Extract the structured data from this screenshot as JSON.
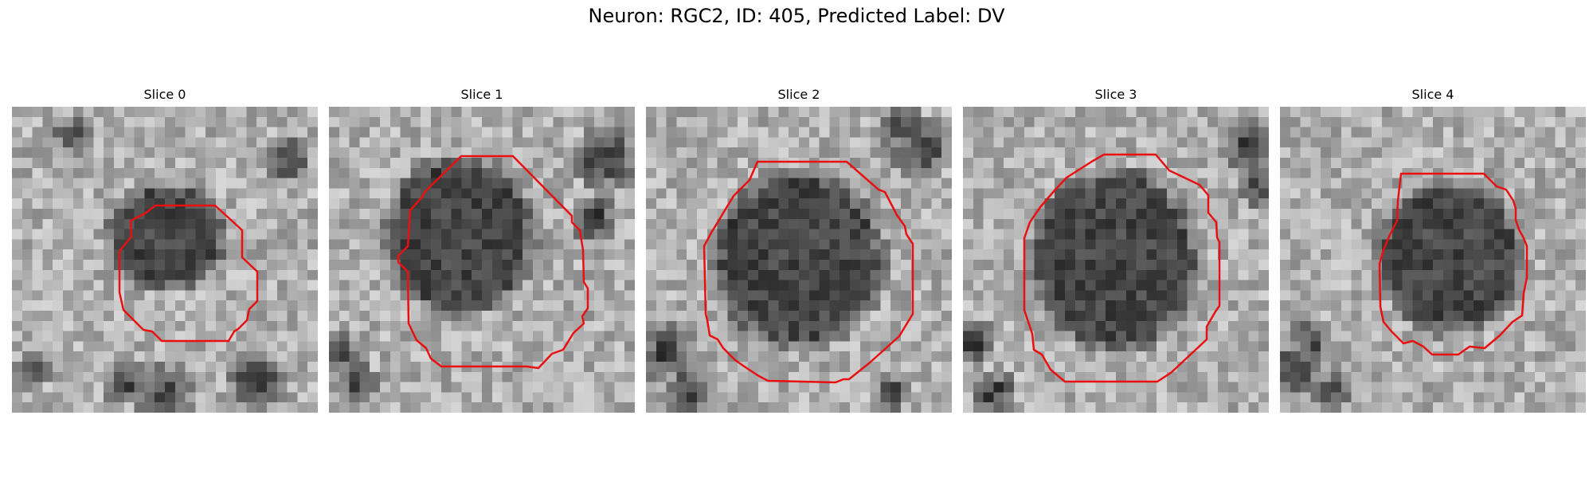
{
  "figure": {
    "title": "Neuron: RGC2, ID: 405, Predicted Label: DV"
  },
  "panels": [
    {
      "title": "Slice 0",
      "contour_color": "#e81010"
    },
    {
      "title": "Slice 1",
      "contour_color": "#e81010"
    },
    {
      "title": "Slice 2",
      "contour_color": "#e81010"
    },
    {
      "title": "Slice 3",
      "contour_color": "#e81010"
    },
    {
      "title": "Slice 4",
      "contour_color": "#e81010"
    }
  ]
}
